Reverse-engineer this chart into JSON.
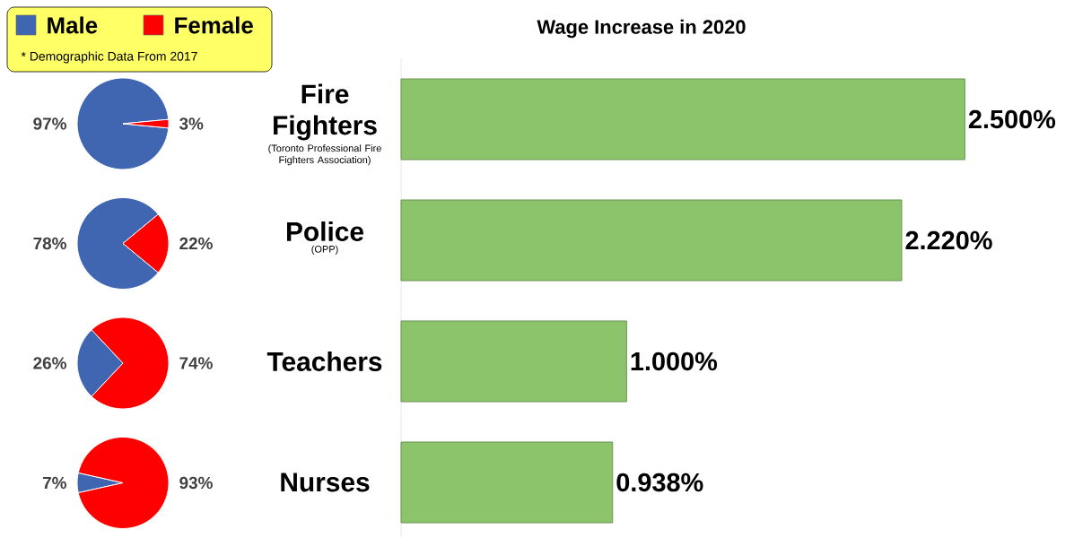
{
  "chart_data": [
    {
      "type": "pie",
      "categories": [
        "Male",
        "Female"
      ],
      "values": [
        97,
        3
      ],
      "value_labels": [
        "97%",
        "3%"
      ],
      "colors": [
        "#4066b2",
        "#ff0000"
      ],
      "legend": "top",
      "annotations": [
        "* Demographic Data From 2017"
      ]
    },
    {
      "type": "pie",
      "categories": [
        null,
        null
      ],
      "values": [
        78,
        22
      ],
      "value_labels": [
        "78%",
        "22%"
      ],
      "colors": [
        "#4066b2",
        "#ff0000"
      ]
    },
    {
      "type": "pie",
      "categories": [
        null,
        null
      ],
      "values": [
        26,
        74
      ],
      "value_labels": [
        "26%",
        "74%"
      ],
      "colors": [
        "#4066b2",
        "#ff0000"
      ]
    },
    {
      "type": "pie",
      "categories": [
        null,
        null
      ],
      "values": [
        7,
        93
      ],
      "value_labels": [
        "7%",
        "93%"
      ],
      "colors": [
        "#4066b2",
        "#ff0000"
      ]
    },
    {
      "type": "bar",
      "orientation": "horizontal",
      "title": "Wage Increase in 2020",
      "categories": [
        "Fire Fighters",
        "Police",
        "Teachers",
        "Nurses"
      ],
      "values": [
        2.5,
        2.22,
        1.0,
        0.938
      ],
      "value_labels": [
        "2.500%",
        "2.220%",
        "1.000%",
        "0.938%"
      ],
      "color": "#8cc46c",
      "annotations": [
        "(Toronto Professional Fire Fighters Association)",
        "(OPP)"
      ]
    }
  ]
}
